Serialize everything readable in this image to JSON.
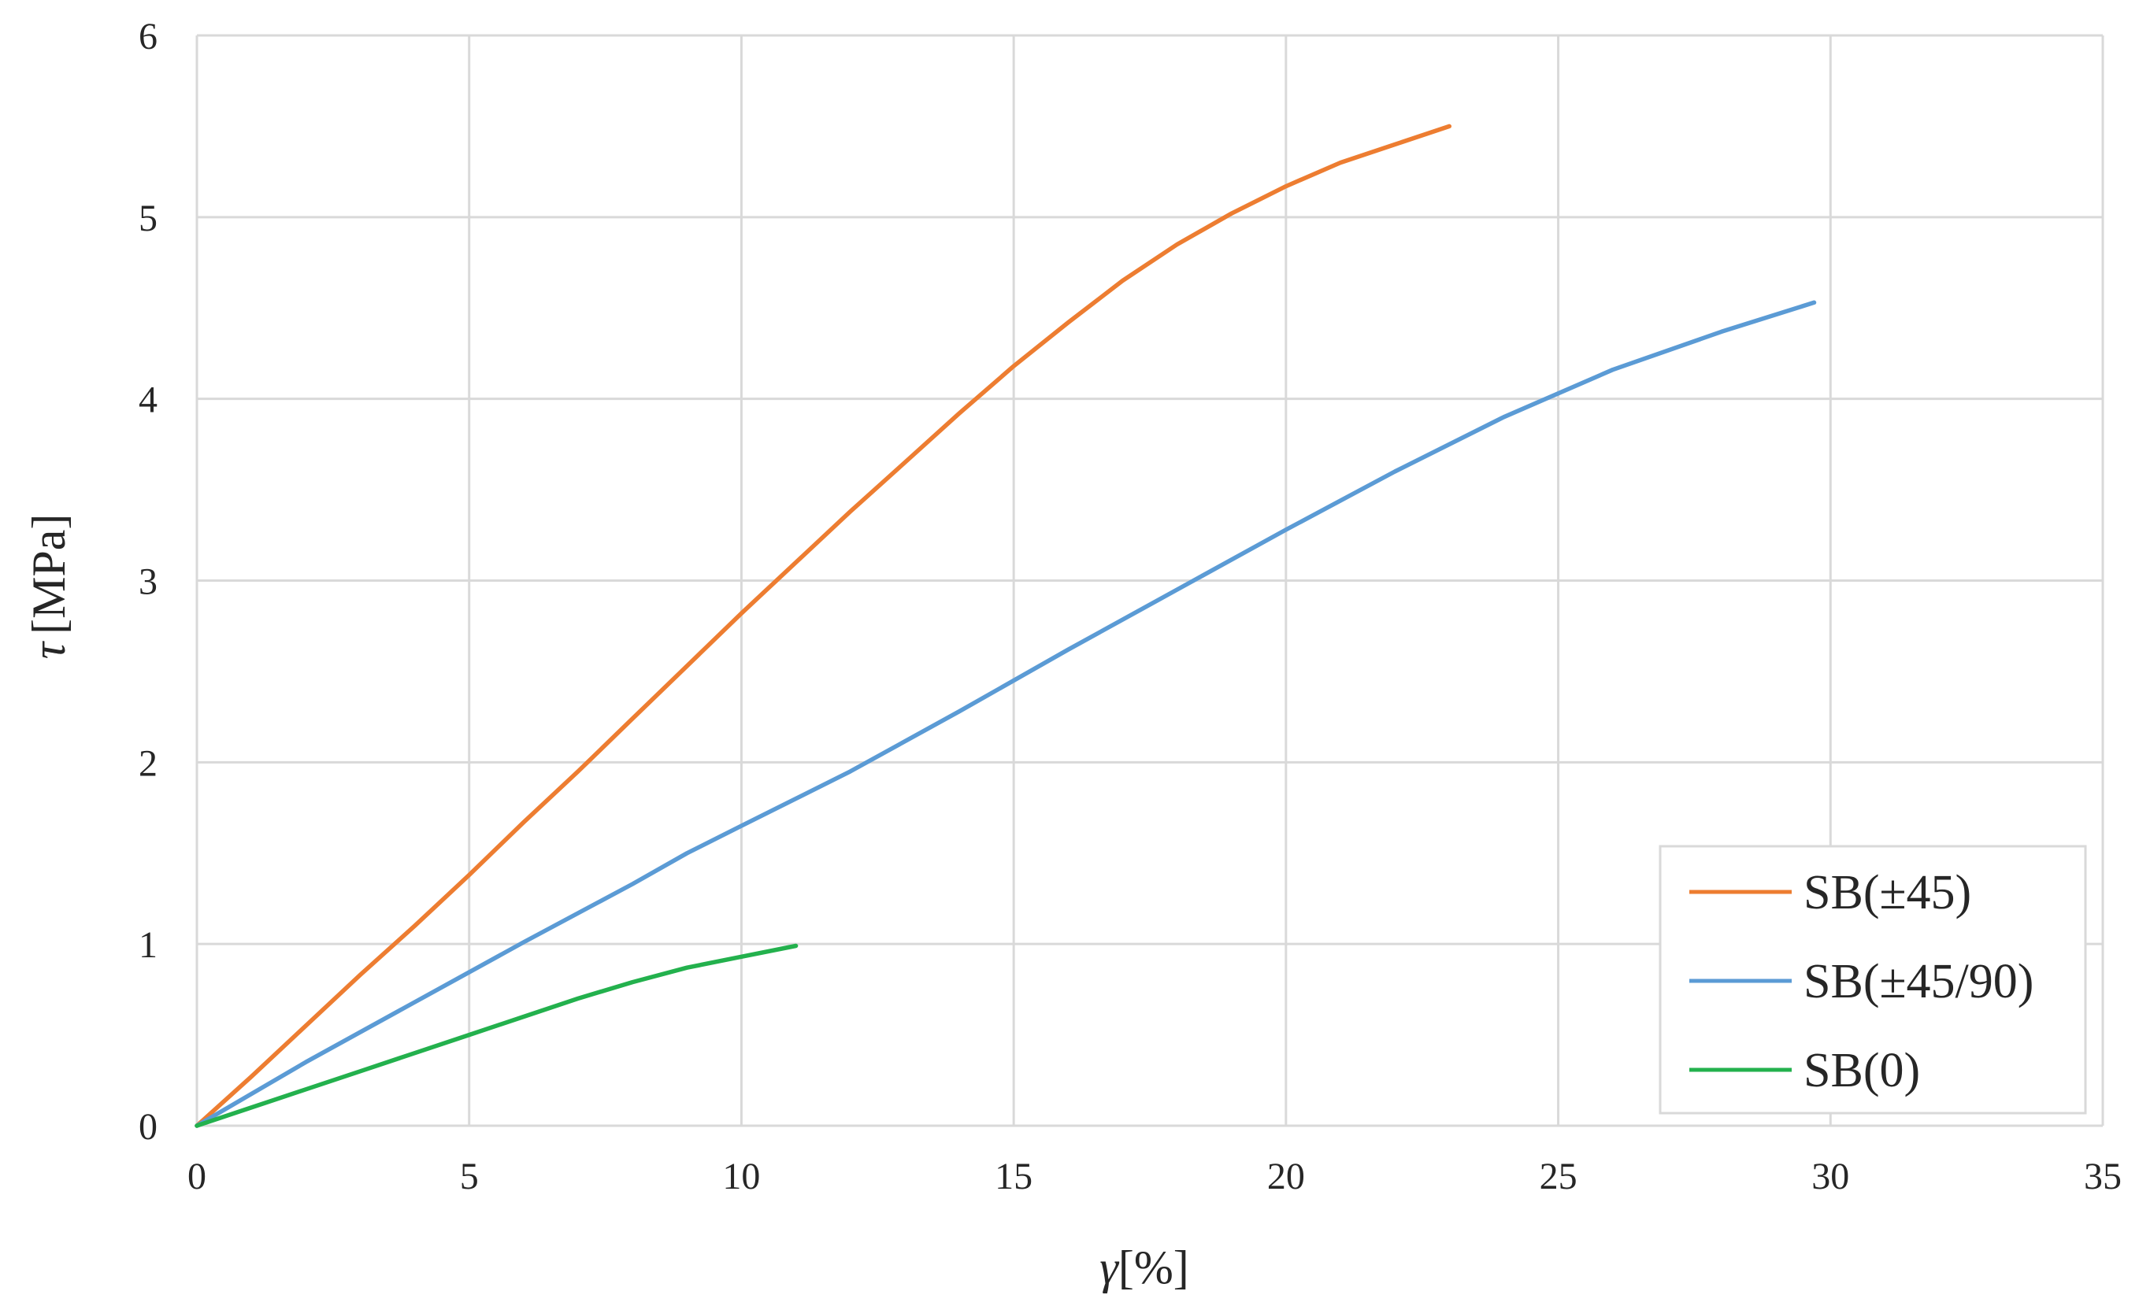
{
  "chart_data": {
    "type": "line",
    "title": "",
    "xlabel": {
      "symbol": "γ",
      "unit": "[%]"
    },
    "ylabel": {
      "symbol": "τ",
      "unit": "[MPa]"
    },
    "xlim": [
      0,
      35
    ],
    "ylim": [
      0,
      6
    ],
    "x_ticks": [
      0,
      5,
      10,
      15,
      20,
      25,
      30,
      35
    ],
    "y_ticks": [
      0,
      1,
      2,
      3,
      4,
      5,
      6
    ],
    "grid": true,
    "legend_position": "bottom-right",
    "series": [
      {
        "name": "SB(±45)",
        "color": "#ED7D31",
        "points": [
          [
            0,
            0
          ],
          [
            1,
            0.27
          ],
          [
            2,
            0.55
          ],
          [
            3,
            0.83
          ],
          [
            4,
            1.1
          ],
          [
            5,
            1.38
          ],
          [
            6,
            1.67
          ],
          [
            7,
            1.95
          ],
          [
            8,
            2.24
          ],
          [
            9,
            2.53
          ],
          [
            10,
            2.82
          ],
          [
            11,
            3.1
          ],
          [
            12,
            3.38
          ],
          [
            13,
            3.65
          ],
          [
            14,
            3.92
          ],
          [
            15,
            4.18
          ],
          [
            16,
            4.42
          ],
          [
            17,
            4.65
          ],
          [
            18,
            4.85
          ],
          [
            19,
            5.02
          ],
          [
            20,
            5.17
          ],
          [
            21,
            5.3
          ],
          [
            22,
            5.4
          ],
          [
            23,
            5.5
          ]
        ]
      },
      {
        "name": "SB(±45/90)",
        "color": "#5B9BD5",
        "points": [
          [
            0,
            0
          ],
          [
            2,
            0.35
          ],
          [
            4,
            0.68
          ],
          [
            6,
            1.01
          ],
          [
            8,
            1.33
          ],
          [
            9,
            1.5
          ],
          [
            10,
            1.65
          ],
          [
            12,
            1.95
          ],
          [
            14,
            2.28
          ],
          [
            16,
            2.62
          ],
          [
            18,
            2.95
          ],
          [
            20,
            3.28
          ],
          [
            22,
            3.6
          ],
          [
            24,
            3.9
          ],
          [
            26,
            4.16
          ],
          [
            28,
            4.37
          ],
          [
            29.7,
            4.53
          ]
        ]
      },
      {
        "name": "SB(0)",
        "color": "#23B14D",
        "points": [
          [
            0,
            0
          ],
          [
            1,
            0.1
          ],
          [
            2,
            0.2
          ],
          [
            3,
            0.3
          ],
          [
            4,
            0.4
          ],
          [
            5,
            0.5
          ],
          [
            6,
            0.6
          ],
          [
            7,
            0.7
          ],
          [
            8,
            0.79
          ],
          [
            9,
            0.87
          ],
          [
            10,
            0.93
          ],
          [
            11,
            0.99
          ]
        ]
      }
    ]
  }
}
